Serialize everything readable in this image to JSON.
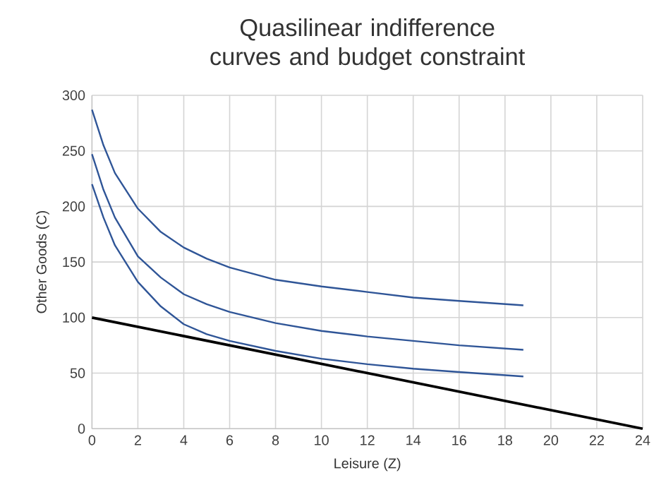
{
  "chart_data": {
    "type": "line",
    "title": "Quasilinear indifference curves and budget constraint",
    "xlabel": "Leisure (Z)",
    "ylabel": "Other Goods (C)",
    "series": [
      {
        "color": "#2f5597",
        "x": [
          0,
          0.5,
          1,
          2,
          3,
          4,
          5,
          6,
          8,
          10,
          12,
          14,
          16,
          18.8
        ],
        "values": [
          287,
          255,
          230,
          198,
          177,
          163,
          153,
          145,
          134,
          128,
          123,
          118,
          115,
          111
        ]
      },
      {
        "color": "#2f5597",
        "x": [
          0,
          0.5,
          1,
          2,
          3,
          4,
          5,
          6,
          8,
          10,
          12,
          14,
          16,
          18.8
        ],
        "values": [
          247,
          215,
          190,
          155,
          136,
          121,
          112,
          105,
          95,
          88,
          83,
          79,
          75,
          71
        ]
      },
      {
        "color": "#2f5597",
        "x": [
          0,
          0.5,
          1,
          2,
          3,
          4,
          5,
          6,
          8,
          10,
          12,
          14,
          16,
          18.8
        ],
        "values": [
          220,
          190,
          165,
          132,
          110,
          94,
          85,
          79,
          70,
          63,
          58,
          54,
          51,
          47
        ]
      },
      {
        "color": "#000000",
        "x": [
          0,
          24
        ],
        "values": [
          100,
          0
        ]
      }
    ],
    "xlim": [
      0,
      24
    ],
    "xticks": [
      0,
      2,
      4,
      6,
      8,
      10,
      12,
      14,
      16,
      18,
      20,
      22,
      24
    ],
    "ylim": [
      0,
      300
    ],
    "yticks": [
      0,
      50,
      100,
      150,
      200,
      250,
      300
    ],
    "grid": true,
    "marker": "none",
    "line_style": "solid"
  }
}
